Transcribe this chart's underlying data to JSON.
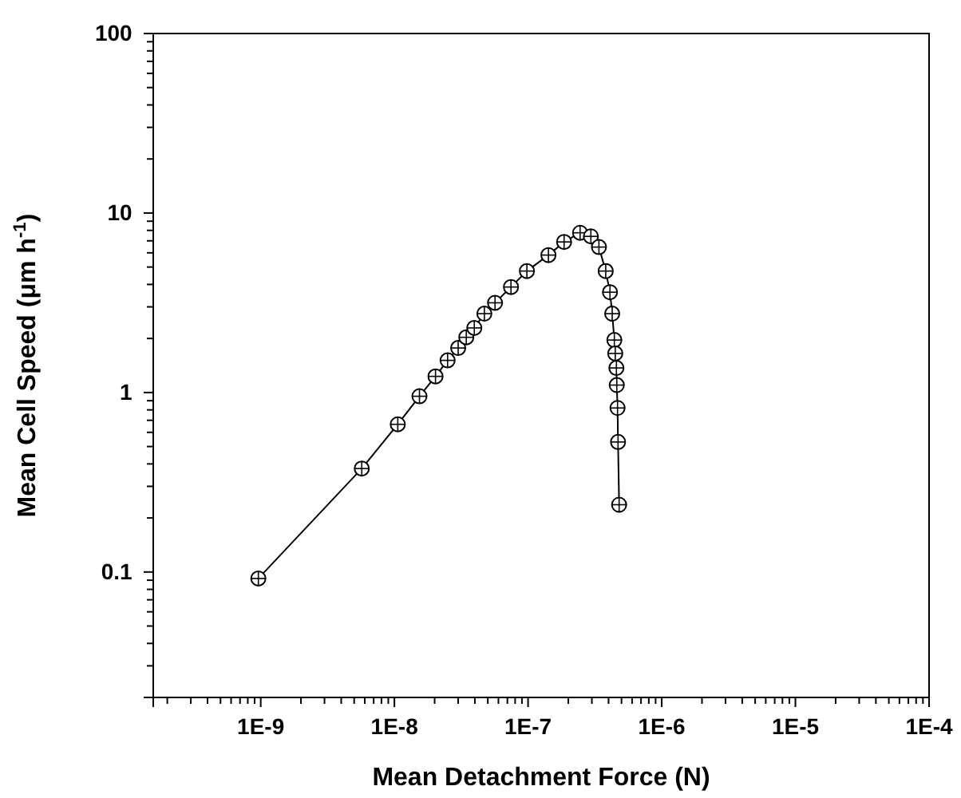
{
  "chart_data": {
    "type": "line",
    "xlabel": "Mean Detachment Force (N)",
    "ylabel": "Mean Cell Speed (μm h$^{-1}$)",
    "log": "xy",
    "marker": "circle",
    "line_style": "solid",
    "grid": false,
    "xlim": [
      1.57e-10,
      0.0001
    ],
    "ylim": [
      0.02,
      100
    ],
    "xticks": [
      {
        "value": 2e-10,
        "label": null
      },
      {
        "value": 3e-10,
        "label": null
      },
      {
        "value": 4e-10,
        "label": null
      },
      {
        "value": 5e-10,
        "label": null
      },
      {
        "value": 6e-10,
        "label": null
      },
      {
        "value": 7e-10,
        "label": null
      },
      {
        "value": 8e-10,
        "label": null
      },
      {
        "value": 9e-10,
        "label": null
      },
      {
        "value": 1e-09,
        "label": "1E-9"
      },
      {
        "value": 2e-09,
        "label": null
      },
      {
        "value": 3e-09,
        "label": null
      },
      {
        "value": 4e-09,
        "label": null
      },
      {
        "value": 5e-09,
        "label": null
      },
      {
        "value": 6e-09,
        "label": null
      },
      {
        "value": 7e-09,
        "label": null
      },
      {
        "value": 8e-09,
        "label": null
      },
      {
        "value": 9e-09,
        "label": null
      },
      {
        "value": 1e-08,
        "label": "1E-8"
      },
      {
        "value": 2e-08,
        "label": null
      },
      {
        "value": 3e-08,
        "label": null
      },
      {
        "value": 4e-08,
        "label": null
      },
      {
        "value": 5e-08,
        "label": null
      },
      {
        "value": 6e-08,
        "label": null
      },
      {
        "value": 7e-08,
        "label": null
      },
      {
        "value": 8e-08,
        "label": null
      },
      {
        "value": 9e-08,
        "label": null
      },
      {
        "value": 1e-07,
        "label": "1E-7"
      },
      {
        "value": 2e-07,
        "label": null
      },
      {
        "value": 3e-07,
        "label": null
      },
      {
        "value": 4e-07,
        "label": null
      },
      {
        "value": 5e-07,
        "label": null
      },
      {
        "value": 6e-07,
        "label": null
      },
      {
        "value": 7e-07,
        "label": null
      },
      {
        "value": 8e-07,
        "label": null
      },
      {
        "value": 9e-07,
        "label": null
      },
      {
        "value": 1e-06,
        "label": "1E-6"
      },
      {
        "value": 2e-06,
        "label": null
      },
      {
        "value": 3e-06,
        "label": null
      },
      {
        "value": 4e-06,
        "label": null
      },
      {
        "value": 5e-06,
        "label": null
      },
      {
        "value": 6e-06,
        "label": null
      },
      {
        "value": 7e-06,
        "label": null
      },
      {
        "value": 8e-06,
        "label": null
      },
      {
        "value": 9e-06,
        "label": null
      },
      {
        "value": 1e-05,
        "label": "1E-5"
      },
      {
        "value": 2e-05,
        "label": null
      },
      {
        "value": 3e-05,
        "label": null
      },
      {
        "value": 4e-05,
        "label": null
      },
      {
        "value": 5e-05,
        "label": null
      },
      {
        "value": 6e-05,
        "label": null
      },
      {
        "value": 7e-05,
        "label": null
      },
      {
        "value": 8e-05,
        "label": null
      },
      {
        "value": 9e-05,
        "label": null
      },
      {
        "value": 0.0001,
        "label": "1E-4"
      }
    ],
    "yticks": [
      {
        "value": 0.03,
        "label": null
      },
      {
        "value": 0.04,
        "label": null
      },
      {
        "value": 0.05,
        "label": null
      },
      {
        "value": 0.06,
        "label": null
      },
      {
        "value": 0.07,
        "label": null
      },
      {
        "value": 0.08,
        "label": null
      },
      {
        "value": 0.09,
        "label": null
      },
      0.1,
      {
        "value": 0.2,
        "label": null
      },
      {
        "value": 0.3,
        "label": null
      },
      {
        "value": 0.4,
        "label": null
      },
      {
        "value": 0.5,
        "label": null
      },
      {
        "value": 0.6,
        "label": null
      },
      {
        "value": 0.7,
        "label": null
      },
      {
        "value": 0.8,
        "label": null
      },
      {
        "value": 0.9,
        "label": null
      },
      1,
      {
        "value": 2,
        "label": null
      },
      {
        "value": 3,
        "label": null
      },
      {
        "value": 4,
        "label": null
      },
      {
        "value": 5,
        "label": null
      },
      {
        "value": 6,
        "label": null
      },
      {
        "value": 7,
        "label": null
      },
      {
        "value": 8,
        "label": null
      },
      {
        "value": 9,
        "label": null
      },
      10,
      {
        "value": 20,
        "label": null
      },
      {
        "value": 30,
        "label": null
      },
      {
        "value": 40,
        "label": null
      },
      {
        "value": 50,
        "label": null
      },
      {
        "value": 60,
        "label": null
      },
      {
        "value": 70,
        "label": null
      },
      {
        "value": 80,
        "label": null
      },
      {
        "value": 90,
        "label": null
      },
      100
    ],
    "series": [
      {
        "color": "#000000",
        "x": [
          9.6e-10,
          5.7e-09,
          1.06e-08,
          1.54e-08,
          2.03e-08,
          2.5e-08,
          3e-08,
          3.45e-08,
          3.96e-08,
          4.71e-08,
          5.66e-08,
          7.45e-08,
          9.8e-08,
          1.42e-07,
          1.86e-07,
          2.45e-07,
          2.95e-07,
          3.39e-07,
          3.81e-07,
          4.1e-07,
          4.26e-07,
          4.42e-07,
          4.49e-07,
          4.58e-07,
          4.61e-07,
          4.67e-07,
          4.71e-07,
          4.8e-07
        ],
        "values": [
          0.092,
          0.377,
          0.665,
          0.953,
          1.23,
          1.51,
          1.77,
          2.03,
          2.29,
          2.75,
          3.16,
          3.87,
          4.75,
          5.83,
          6.9,
          7.76,
          7.41,
          6.46,
          4.75,
          3.62,
          2.75,
          1.96,
          1.65,
          1.37,
          1.1,
          0.82,
          0.53,
          0.237
        ]
      }
    ]
  }
}
